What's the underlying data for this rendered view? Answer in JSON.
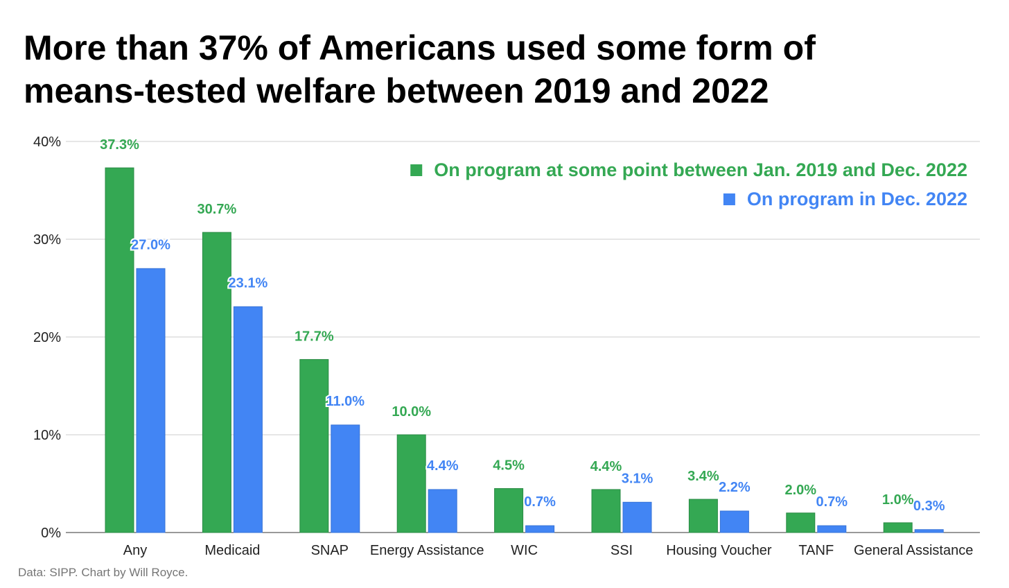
{
  "title_line1": "More than 37% of Americans used some form of",
  "title_line2": "means-tested welfare between 2019 and 2022",
  "footer": "Data: SIPP. Chart by Will Royce.",
  "chart_data": {
    "type": "bar",
    "title": "More than 37% of Americans used some form of means-tested welfare between 2019 and 2022",
    "xlabel": "",
    "ylabel": "",
    "ylim": [
      0,
      40
    ],
    "yticks": [
      "0%",
      "10%",
      "20%",
      "30%",
      "40%"
    ],
    "grid": true,
    "legend_position": "top-right",
    "categories": [
      "Any",
      "Medicaid",
      "SNAP",
      "Energy Assistance",
      "WIC",
      "SSI",
      "Housing Voucher",
      "TANF",
      "General Assistance"
    ],
    "series": [
      {
        "name": "On program at some point between Jan. 2019 and Dec. 2022",
        "color": "#34a853",
        "values": [
          37.3,
          30.7,
          17.7,
          10.0,
          4.5,
          4.4,
          3.4,
          2.0,
          1.0
        ],
        "labels": [
          "37.3%",
          "30.7%",
          "17.7%",
          "10.0%",
          "4.5%",
          "4.4%",
          "3.4%",
          "2.0%",
          "1.0%"
        ]
      },
      {
        "name": "On program in Dec. 2022",
        "color": "#4285f4",
        "values": [
          27.0,
          23.1,
          11.0,
          4.4,
          0.7,
          3.1,
          2.2,
          0.7,
          0.3
        ],
        "labels": [
          "27.0%",
          "23.1%",
          "11.0%",
          "4.4%",
          "0.7%",
          "3.1%",
          "2.2%",
          "0.7%",
          "0.3%"
        ]
      }
    ]
  }
}
